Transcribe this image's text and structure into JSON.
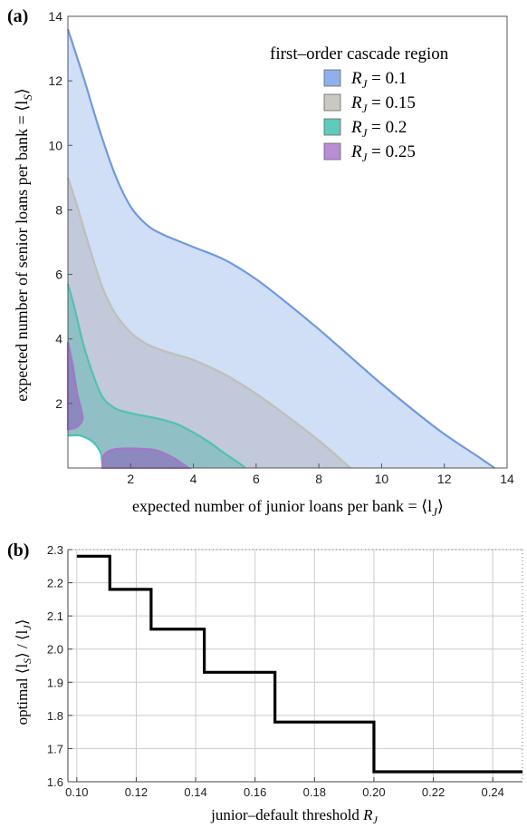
{
  "colors": {
    "rj_0_1_fill": "#a9c2ef",
    "rj_0_1_line": "#6f9ae0",
    "rj_0_1_swatch": "#8fb0ea",
    "rj_0_15_fill": "#b4b8c3",
    "rj_0_15_line": "#c0bfba",
    "rj_0_15_swatch": "#c9c8c2",
    "rj_0_2_fill": "#69b7b6",
    "rj_0_2_line": "#4fc3b2",
    "rj_0_2_swatch": "#5ecbbb",
    "rj_0_25_fill": "#8a7fbb",
    "rj_0_25_line": "#a775c9",
    "rj_0_25_swatch": "#b98cd6",
    "step_line": "#000000",
    "grid": "#cccccc"
  },
  "chart_data": [
    {
      "panel_label": "(a)",
      "type": "area",
      "xlabel_prefix": "expected number of junior loans per bank = ",
      "xlabel_math": "⟨l",
      "xlabel_sub": "J",
      "xlabel_close": "⟩",
      "ylabel_prefix": "expected number of senior loans per bank = ",
      "ylabel_math": "⟨l",
      "ylabel_sub": "S",
      "ylabel_close": "⟩",
      "xlim": [
        0,
        14
      ],
      "ylim": [
        0,
        14
      ],
      "xticks": [
        2,
        4,
        6,
        8,
        10,
        12,
        14
      ],
      "yticks": [
        2,
        4,
        6,
        8,
        10,
        12,
        14
      ],
      "legend_title": "first–order cascade region",
      "legend_position": "top-right",
      "series": [
        {
          "name": "R_J = 0.1",
          "label_var": "R",
          "label_sub": "J",
          "label_val": " = 0.1",
          "outer": [
            [
              0,
              13.6
            ],
            [
              0.5,
              12.1
            ],
            [
              1,
              10.5
            ],
            [
              1.5,
              9.1
            ],
            [
              2,
              8.1
            ],
            [
              2.5,
              7.55
            ],
            [
              3,
              7.25
            ],
            [
              4,
              6.85
            ],
            [
              5,
              6.45
            ],
            [
              6,
              5.85
            ],
            [
              7,
              5.1
            ],
            [
              8,
              4.3
            ],
            [
              9,
              3.45
            ],
            [
              10,
              2.6
            ],
            [
              11,
              1.8
            ],
            [
              12,
              1.05
            ],
            [
              13,
              0.4
            ],
            [
              13.6,
              0
            ]
          ]
        },
        {
          "name": "R_J = 0.15",
          "label_var": "R",
          "label_sub": "J",
          "label_val": " = 0.15",
          "outer": [
            [
              0,
              9.0
            ],
            [
              0.3,
              8.1
            ],
            [
              0.7,
              6.8
            ],
            [
              1.1,
              5.6
            ],
            [
              1.5,
              4.8
            ],
            [
              2,
              4.2
            ],
            [
              2.5,
              3.85
            ],
            [
              3,
              3.65
            ],
            [
              3.5,
              3.5
            ],
            [
              4,
              3.35
            ],
            [
              5,
              2.9
            ],
            [
              6,
              2.3
            ],
            [
              7,
              1.6
            ],
            [
              8,
              0.85
            ],
            [
              8.6,
              0.35
            ],
            [
              9,
              0
            ]
          ]
        },
        {
          "name": "R_J = 0.2",
          "label_var": "R",
          "label_sub": "J",
          "label_val": " = 0.2",
          "outer": [
            [
              0,
              5.7
            ],
            [
              0.2,
              5.0
            ],
            [
              0.5,
              3.8
            ],
            [
              0.8,
              2.9
            ],
            [
              1.1,
              2.2
            ],
            [
              1.5,
              1.85
            ],
            [
              2,
              1.7
            ],
            [
              2.5,
              1.6
            ],
            [
              3,
              1.5
            ],
            [
              3.5,
              1.35
            ],
            [
              4,
              1.1
            ],
            [
              4.5,
              0.8
            ],
            [
              5,
              0.45
            ],
            [
              5.5,
              0.12
            ],
            [
              5.65,
              0
            ]
          ],
          "inner": [
            [
              0,
              1.0
            ],
            [
              0.4,
              1.0
            ],
            [
              0.8,
              0.8
            ],
            [
              1.05,
              0.45
            ],
            [
              1.1,
              0
            ]
          ]
        },
        {
          "name": "R_J = 0.25",
          "label_var": "R",
          "label_sub": "J",
          "label_val": " = 0.25",
          "blobs": [
            [
              [
                0,
                3.9
              ],
              [
                0.15,
                3.2
              ],
              [
                0.3,
                2.3
              ],
              [
                0.45,
                1.7
              ],
              [
                0.45,
                1.45
              ],
              [
                0.25,
                1.25
              ],
              [
                0,
                1.2
              ]
            ],
            [
              [
                1.1,
                0
              ],
              [
                1.15,
                0.4
              ],
              [
                1.5,
                0.58
              ],
              [
                2.2,
                0.6
              ],
              [
                2.8,
                0.55
              ],
              [
                3.3,
                0.35
              ],
              [
                3.7,
                0.1
              ],
              [
                3.85,
                0
              ]
            ]
          ]
        }
      ]
    },
    {
      "panel_label": "(b)",
      "type": "line",
      "xlabel": "junior–default threshold ",
      "xlabel_var": "R",
      "xlabel_sub": "J",
      "ylabel_prefix": "optimal ⟨l",
      "ylabel_sub1": "S",
      "ylabel_mid": "⟩ / ⟨l",
      "ylabel_sub2": "J",
      "ylabel_close": "⟩",
      "xlim": [
        0.097,
        0.25
      ],
      "ylim": [
        1.6,
        2.3
      ],
      "xticks": [
        "0.10",
        "0.12",
        "0.14",
        "0.16",
        "0.18",
        "0.20",
        "0.22",
        "0.24"
      ],
      "yticks": [
        "1.6",
        "1.7",
        "1.8",
        "1.9",
        "2.0",
        "2.1",
        "2.2",
        "2.3"
      ],
      "x": [
        0.1,
        0.1111,
        0.1111,
        0.125,
        0.125,
        0.1429,
        0.1429,
        0.1667,
        0.1667,
        0.2,
        0.2,
        0.25
      ],
      "y": [
        2.28,
        2.28,
        2.18,
        2.18,
        2.06,
        2.06,
        1.93,
        1.93,
        1.78,
        1.78,
        1.63,
        1.63
      ]
    }
  ]
}
